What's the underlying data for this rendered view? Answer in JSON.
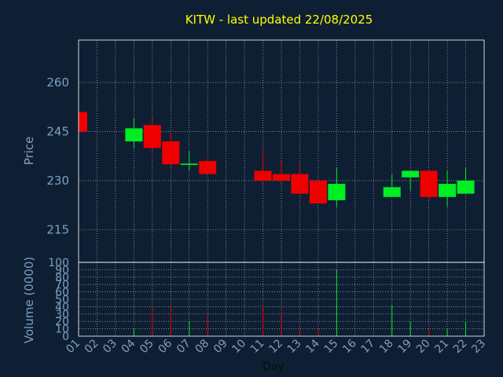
{
  "chart_data": {
    "type": "candlestick",
    "title": "KITW - last updated 22/08/2025",
    "xlabel": "Day",
    "ylabel": "Price",
    "volume_label": "Volume (0000)",
    "x_ticks": [
      "01",
      "02",
      "03",
      "04",
      "05",
      "06",
      "07",
      "08",
      "09",
      "10",
      "11",
      "12",
      "13",
      "14",
      "15",
      "16",
      "17",
      "18",
      "19",
      "20",
      "21",
      "22",
      "23"
    ],
    "price_ticks": [
      215,
      230,
      245,
      260
    ],
    "price_ylim": [
      205,
      273
    ],
    "volume_ticks": [
      0,
      10,
      20,
      30,
      40,
      50,
      60,
      70,
      80,
      90,
      100
    ],
    "volume_ylim": [
      0,
      100
    ],
    "grid": true,
    "candles": [
      {
        "day": "01",
        "open": 251.0,
        "high": 251.0,
        "low": 245.0,
        "close": 245.0,
        "volume": 0
      },
      {
        "day": "04",
        "open": 242.0,
        "high": 249.0,
        "low": 240.0,
        "close": 246.0,
        "volume": 10
      },
      {
        "day": "05",
        "open": 247.0,
        "high": 249.0,
        "low": 239.0,
        "close": 240.0,
        "volume": 40
      },
      {
        "day": "06",
        "open": 242.0,
        "high": 245.0,
        "low": 234.0,
        "close": 235.0,
        "volume": 40
      },
      {
        "day": "07",
        "open": 234.8,
        "high": 239.0,
        "low": 233.0,
        "close": 235.2,
        "volume": 20
      },
      {
        "day": "08",
        "open": 236.0,
        "high": 237.0,
        "low": 232.0,
        "close": 232.0,
        "volume": 28
      },
      {
        "day": "11",
        "open": 233.0,
        "high": 239.0,
        "low": 229.0,
        "close": 230.0,
        "volume": 40
      },
      {
        "day": "12",
        "open": 232.0,
        "high": 236.0,
        "low": 229.0,
        "close": 230.0,
        "volume": 33
      },
      {
        "day": "13",
        "open": 232.0,
        "high": 235.0,
        "low": 226.0,
        "close": 226.0,
        "volume": 12
      },
      {
        "day": "14",
        "open": 230.0,
        "high": 230.0,
        "low": 223.0,
        "close": 223.0,
        "volume": 10
      },
      {
        "day": "15",
        "open": 224.0,
        "high": 234.0,
        "low": 222.0,
        "close": 229.0,
        "volume": 90
      },
      {
        "day": "18",
        "open": 225.0,
        "high": 232.0,
        "low": 225.0,
        "close": 228.0,
        "volume": 42
      },
      {
        "day": "19",
        "open": 231.0,
        "high": 233.0,
        "low": 227.0,
        "close": 233.0,
        "volume": 20
      },
      {
        "day": "20",
        "open": 233.0,
        "high": 233.0,
        "low": 224.0,
        "close": 225.0,
        "volume": 10
      },
      {
        "day": "21",
        "open": 225.0,
        "high": 233.0,
        "low": 222.0,
        "close": 229.0,
        "volume": 10
      },
      {
        "day": "22",
        "open": 226.0,
        "high": 234.0,
        "low": 226.0,
        "close": 230.0,
        "volume": 20
      }
    ],
    "colors": {
      "background": "#0f1f33",
      "up": "#00ee22",
      "down": "#ee0000",
      "title": "#ffff00",
      "axis_text": "#7f9fbf",
      "frame": "#ffffff",
      "grid": "#ffffff"
    }
  }
}
